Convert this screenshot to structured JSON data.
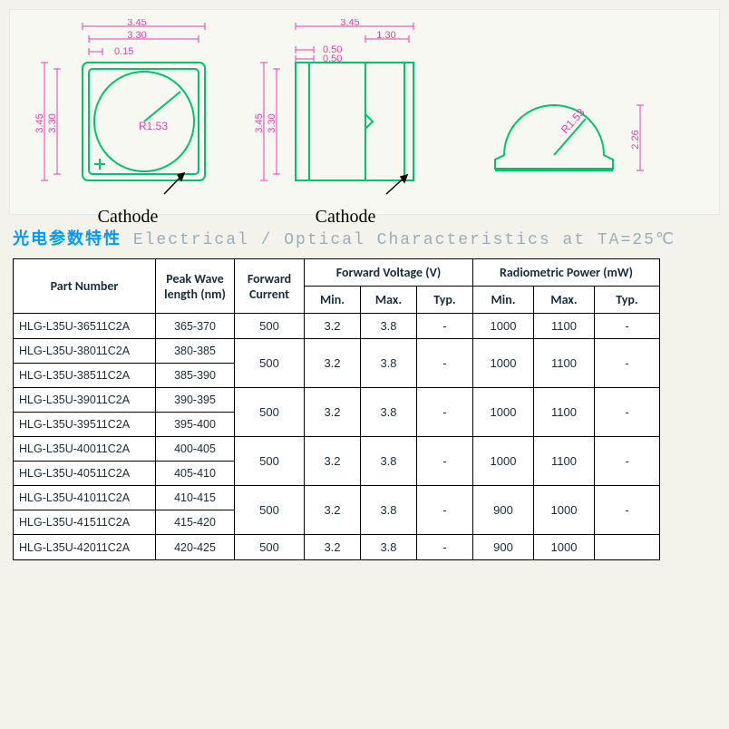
{
  "diagram": {
    "colors": {
      "outline": "#00c46a",
      "dimension": "#e83ea6",
      "text": "#e83ea6",
      "label": "#000000"
    },
    "dims": {
      "top_outer": "3.45",
      "top_inner": "3.30",
      "top_offset": "0.15",
      "left_outer": "3.45",
      "left_inner": "3.30",
      "radius": "R1.53",
      "mid_top": "3.45",
      "mid_small1": "0.50",
      "mid_small2": "0.50",
      "mid_right": "1.30",
      "right_height": "2.26"
    },
    "cathode_label": "Cathode"
  },
  "section": {
    "title_cn": "光电参数特性",
    "title_en": "Electrical / Optical Characteristics at TA=25℃"
  },
  "table": {
    "headers": {
      "part_number": "Part Number",
      "peak_wave": "Peak Wave length (nm)",
      "forward_current": "Forward Current",
      "fv_group": "Forward Voltage (V)",
      "rp_group": "Radiometric Power (mW)",
      "min": "Min.",
      "max": "Max.",
      "typ": "Typ."
    },
    "groups": [
      {
        "parts": [
          {
            "pn": "HLG-L35U-36511C2A",
            "wl": "365-370"
          }
        ],
        "current": "500",
        "fv_min": "3.2",
        "fv_max": "3.8",
        "fv_typ": "-",
        "rp_min": "1000",
        "rp_max": "1100",
        "rp_typ": "-"
      },
      {
        "parts": [
          {
            "pn": "HLG-L35U-38011C2A",
            "wl": "380-385"
          },
          {
            "pn": "HLG-L35U-38511C2A",
            "wl": "385-390"
          }
        ],
        "current": "500",
        "fv_min": "3.2",
        "fv_max": "3.8",
        "fv_typ": "-",
        "rp_min": "1000",
        "rp_max": "1100",
        "rp_typ": "-"
      },
      {
        "parts": [
          {
            "pn": "HLG-L35U-39011C2A",
            "wl": "390-395"
          },
          {
            "pn": "HLG-L35U-39511C2A",
            "wl": "395-400"
          }
        ],
        "current": "500",
        "fv_min": "3.2",
        "fv_max": "3.8",
        "fv_typ": "-",
        "rp_min": "1000",
        "rp_max": "1100",
        "rp_typ": "-"
      },
      {
        "parts": [
          {
            "pn": "HLG-L35U-40011C2A",
            "wl": "400-405"
          },
          {
            "pn": "HLG-L35U-40511C2A",
            "wl": "405-410"
          }
        ],
        "current": "500",
        "fv_min": "3.2",
        "fv_max": "3.8",
        "fv_typ": "-",
        "rp_min": "1000",
        "rp_max": "1100",
        "rp_typ": "-"
      },
      {
        "parts": [
          {
            "pn": "HLG-L35U-41011C2A",
            "wl": "410-415"
          },
          {
            "pn": "HLG-L35U-41511C2A",
            "wl": "415-420"
          }
        ],
        "current": "500",
        "fv_min": "3.2",
        "fv_max": "3.8",
        "fv_typ": "-",
        "rp_min": "900",
        "rp_max": "1000",
        "rp_typ": "-"
      },
      {
        "parts": [
          {
            "pn": "HLG-L35U-42011C2A",
            "wl": "420-425"
          }
        ],
        "current": "500",
        "fv_min": "3.2",
        "fv_max": "3.8",
        "fv_typ": "-",
        "rp_min": "900",
        "rp_max": "1000",
        "rp_typ": ""
      }
    ]
  }
}
